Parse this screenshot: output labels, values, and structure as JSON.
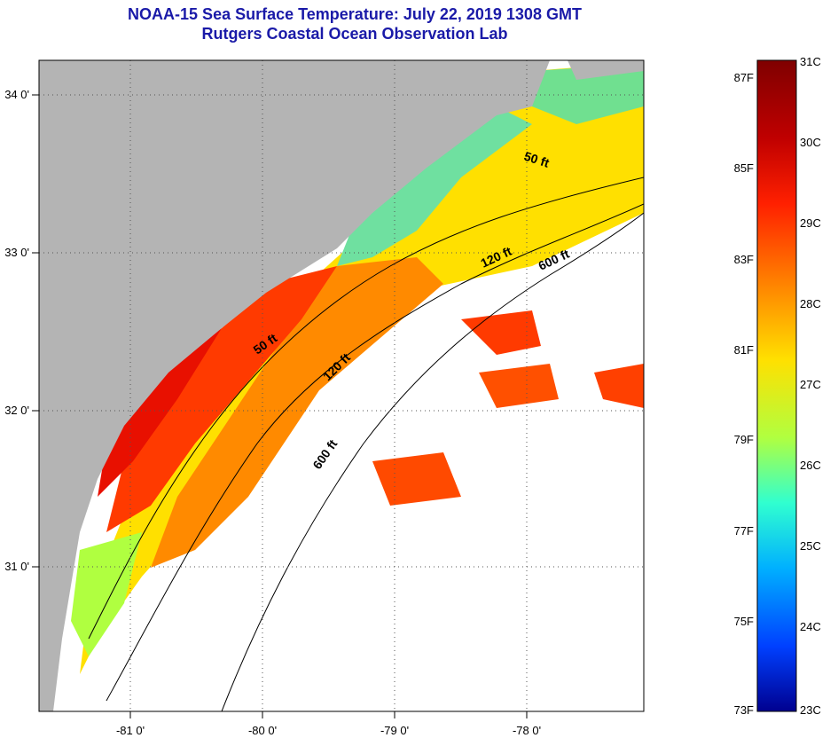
{
  "title": "NOAA-15 Sea Surface Temperature:  July 22, 2019 1308 GMT",
  "subtitle": "Rutgers Coastal Ocean Observation Lab",
  "map": {
    "lon_labels": [
      "-81 0'",
      "-80 0'",
      "-79 0'",
      "-78 0'"
    ],
    "lat_labels": [
      "34 0'",
      "33 0'",
      "32 0'",
      "31 0'"
    ],
    "contour_labels": {
      "north": [
        "50 ft",
        "120 ft",
        "600 ft"
      ],
      "south": [
        "50 ft",
        "120 ft",
        "600 ft"
      ]
    }
  },
  "colorbar": {
    "celsius_labels": [
      "31C",
      "30C",
      "29C",
      "28C",
      "27C",
      "26C",
      "25C",
      "24C",
      "23C"
    ],
    "fahrenheit_labels": [
      "87F",
      "85F",
      "83F",
      "81F",
      "79F",
      "77F",
      "75F",
      "73F"
    ],
    "colors": [
      "#7f0000",
      "#c00000",
      "#ff2000",
      "#ff8000",
      "#ffe000",
      "#b0ff40",
      "#30ffd0",
      "#00b0ff",
      "#0040ff",
      "#00008f"
    ]
  },
  "colors": {
    "title": "#1a1aa8",
    "land": "#b4b4b4",
    "cloud": "#ffffff"
  }
}
